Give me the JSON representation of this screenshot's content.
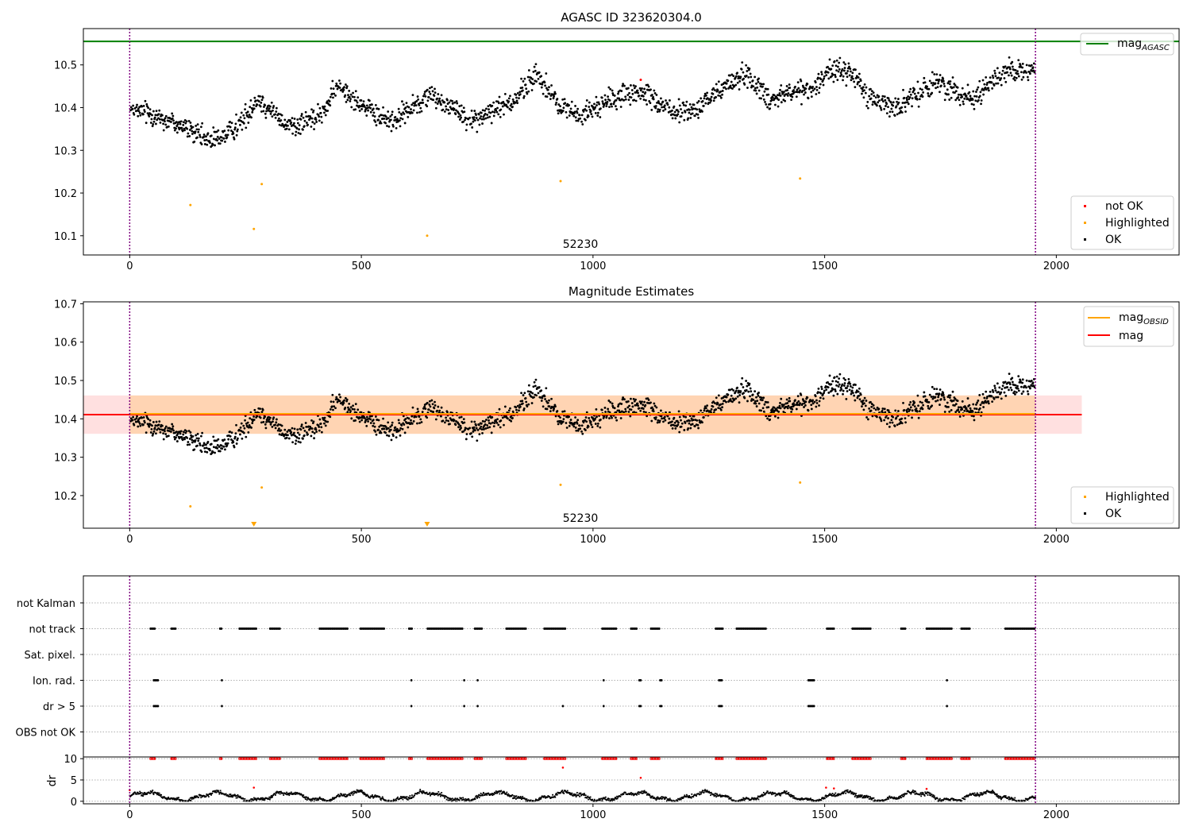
{
  "figure": {
    "background": "#ffffff"
  },
  "chart_data": [
    {
      "type": "scatter",
      "title": "AGASC ID 323620304.0",
      "xlim": [
        -100,
        2265
      ],
      "ylim": [
        10.055,
        10.585
      ],
      "x_ticks": [
        "0",
        "500",
        "1000",
        "1500",
        "2000"
      ],
      "y_ticks": [
        "10.1",
        "10.2",
        "10.3",
        "10.4",
        "10.5"
      ],
      "grid": false,
      "obsid_label": "52230",
      "obs_boundaries": [
        0,
        1955
      ],
      "reference_lines": [
        {
          "name": "mag",
          "subscript": "AGASC",
          "y": 10.555,
          "color": "#008000"
        }
      ],
      "line_legend_position": "upper-right",
      "scatter_legend_position": "lower-right",
      "series": [
        {
          "name": "not OK",
          "color": "#ff0000",
          "points": [
            [
              1103,
              10.465
            ]
          ]
        },
        {
          "name": "Highlighted",
          "color": "#ffa500",
          "points": [
            [
              131,
              10.172
            ],
            [
              268,
              10.116
            ],
            [
              285,
              10.221
            ],
            [
              642,
              10.1
            ],
            [
              930,
              10.228
            ],
            [
              1447,
              10.234
            ]
          ]
        },
        {
          "name": "OK",
          "color": "#000000",
          "trend": [
            [
              0,
              10.39
            ],
            [
              40,
              10.39
            ],
            [
              80,
              10.37
            ],
            [
              110,
              10.36
            ],
            [
              140,
              10.34
            ],
            [
              175,
              10.32
            ],
            [
              210,
              10.34
            ],
            [
              245,
              10.37
            ],
            [
              275,
              10.42
            ],
            [
              300,
              10.4
            ],
            [
              330,
              10.36
            ],
            [
              370,
              10.36
            ],
            [
              410,
              10.38
            ],
            [
              450,
              10.45
            ],
            [
              490,
              10.42
            ],
            [
              530,
              10.38
            ],
            [
              570,
              10.37
            ],
            [
              610,
              10.4
            ],
            [
              650,
              10.43
            ],
            [
              700,
              10.4
            ],
            [
              740,
              10.37
            ],
            [
              780,
              10.39
            ],
            [
              830,
              10.42
            ],
            [
              880,
              10.48
            ],
            [
              920,
              10.41
            ],
            [
              970,
              10.38
            ],
            [
              1020,
              10.41
            ],
            [
              1070,
              10.43
            ],
            [
              1120,
              10.43
            ],
            [
              1170,
              10.39
            ],
            [
              1220,
              10.39
            ],
            [
              1270,
              10.44
            ],
            [
              1330,
              10.48
            ],
            [
              1380,
              10.42
            ],
            [
              1430,
              10.44
            ],
            [
              1470,
              10.44
            ],
            [
              1510,
              10.49
            ],
            [
              1560,
              10.48
            ],
            [
              1600,
              10.42
            ],
            [
              1650,
              10.4
            ],
            [
              1700,
              10.43
            ],
            [
              1740,
              10.46
            ],
            [
              1780,
              10.44
            ],
            [
              1820,
              10.42
            ],
            [
              1860,
              10.46
            ],
            [
              1900,
              10.49
            ],
            [
              1950,
              10.49
            ]
          ]
        }
      ]
    },
    {
      "type": "scatter",
      "title": "Magnitude Estimates",
      "xlim": [
        -100,
        2265
      ],
      "ylim": [
        10.115,
        10.705
      ],
      "x_ticks": [
        "0",
        "500",
        "1000",
        "1500",
        "2000"
      ],
      "y_ticks": [
        "10.2",
        "10.3",
        "10.4",
        "10.5",
        "10.6",
        "10.7"
      ],
      "grid": false,
      "obsid_label": "52230",
      "obs_boundaries": [
        0,
        1955
      ],
      "bands": [
        {
          "name": "mag",
          "y0": 10.361,
          "y1": 10.461,
          "x0": -100,
          "x1": 2055,
          "color": "#ff0000",
          "opacity": 0.12
        },
        {
          "name": "mag_OBSID",
          "y0": 10.361,
          "y1": 10.461,
          "x0": 0,
          "x1": 1955,
          "color": "#ffa500",
          "opacity": 0.2
        }
      ],
      "reference_lines": [
        {
          "name": "mag",
          "subscript": "OBSID",
          "y": 10.413,
          "x0": 0,
          "x1": 1955,
          "color": "#ffa500"
        },
        {
          "name": "mag",
          "subscript": "",
          "y": 10.411,
          "x0": -100,
          "x1": 2055,
          "color": "#ff0000"
        }
      ],
      "line_legend_position": "upper-right",
      "scatter_legend_position": "lower-right",
      "series": [
        {
          "name": "Highlighted",
          "color": "#ffa500",
          "points": [
            [
              131,
              10.172
            ],
            [
              285,
              10.221
            ],
            [
              930,
              10.228
            ],
            [
              1447,
              10.234
            ]
          ],
          "offscale_markers": [
            268,
            642
          ]
        },
        {
          "name": "OK",
          "color": "#000000",
          "trend_from": 0
        }
      ]
    },
    {
      "type": "scatter",
      "title": "",
      "xlim": [
        -100,
        2265
      ],
      "x_ticks": [
        "0",
        "500",
        "1000",
        "1500",
        "2000"
      ],
      "categories": [
        "not Kalman",
        "not track",
        "Sat. pixel.",
        "Ion. rad.",
        "dr > 5",
        "OBS not OK"
      ],
      "flag_spans": {
        "not track": [
          [
            45,
            55
          ],
          [
            90,
            100
          ],
          [
            195,
            200
          ],
          [
            237,
            275
          ],
          [
            303,
            325
          ],
          [
            410,
            470
          ],
          [
            498,
            550
          ],
          [
            603,
            610
          ],
          [
            643,
            720
          ],
          [
            745,
            760
          ],
          [
            813,
            855
          ],
          [
            895,
            940
          ],
          [
            1020,
            1050
          ],
          [
            1082,
            1095
          ],
          [
            1125,
            1145
          ],
          [
            1265,
            1280
          ],
          [
            1310,
            1375
          ],
          [
            1505,
            1520
          ],
          [
            1560,
            1600
          ],
          [
            1665,
            1675
          ],
          [
            1720,
            1775
          ],
          [
            1795,
            1815
          ],
          [
            1890,
            1955
          ]
        ],
        "Ion. rad.": [
          [
            52,
            62
          ],
          [
            199,
            199
          ],
          [
            608,
            608
          ],
          [
            722,
            722
          ],
          [
            751,
            751
          ],
          [
            1023,
            1023
          ],
          [
            1100,
            1103
          ],
          [
            1145,
            1150
          ],
          [
            1272,
            1278
          ],
          [
            1465,
            1478
          ],
          [
            1764,
            1764
          ]
        ],
        "dr > 5": [
          [
            52,
            62
          ],
          [
            199,
            199
          ],
          [
            608,
            608
          ],
          [
            722,
            722
          ],
          [
            751,
            751
          ],
          [
            935,
            935
          ],
          [
            1023,
            1023
          ],
          [
            1100,
            1103
          ],
          [
            1145,
            1150
          ],
          [
            1272,
            1278
          ],
          [
            1465,
            1478
          ],
          [
            1764,
            1764
          ]
        ]
      },
      "obs_boundaries": [
        0,
        1955
      ]
    },
    {
      "type": "scatter",
      "title": "",
      "ylabel": "dr",
      "xlim": [
        -100,
        2265
      ],
      "ylim": [
        -0.6,
        10.4
      ],
      "x_ticks": [
        "0",
        "500",
        "1000",
        "1500",
        "2000"
      ],
      "y_ticks": [
        "0",
        "5",
        "10"
      ],
      "grid": true,
      "obs_boundaries": [
        0,
        1955
      ],
      "clipped_value": 10,
      "outlier_points": [
        [
          0,
          2.6
        ],
        [
          268,
          3.2
        ],
        [
          935,
          7.9
        ],
        [
          1103,
          5.5
        ],
        [
          1503,
          3.2
        ],
        [
          1520,
          3.0
        ],
        [
          1720,
          2.9
        ]
      ]
    }
  ]
}
